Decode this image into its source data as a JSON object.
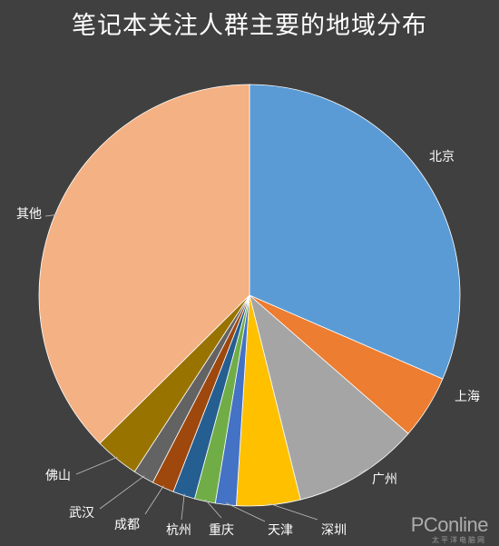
{
  "chart_data": {
    "type": "pie",
    "title": "笔记本关注人群主要的地域分布",
    "categories": [
      "北京",
      "上海",
      "广州",
      "深圳",
      "天津",
      "重庆",
      "杭州",
      "成都",
      "武汉",
      "佛山",
      "其他"
    ],
    "values": [
      31.5,
      4.9,
      9.7,
      4.9,
      1.6,
      1.6,
      1.7,
      1.7,
      1.6,
      3.4,
      37.4
    ],
    "colors": [
      "#5b9bd5",
      "#ed7d31",
      "#a5a5a5",
      "#ffc000",
      "#4472c4",
      "#70ad47",
      "#255e91",
      "#9e480e",
      "#636363",
      "#997300",
      "#f4b183"
    ],
    "legend": "none",
    "start_angle": "12 o'clock, clockwise"
  },
  "watermark": {
    "logo_text": "PConline",
    "tagline": "太平洋电脑网"
  }
}
